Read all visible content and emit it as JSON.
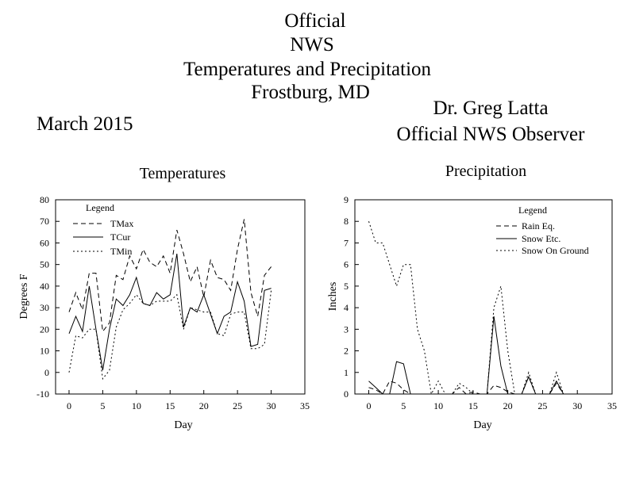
{
  "header": {
    "line1": "Official",
    "line2": "NWS",
    "line3": "Temperatures and Precipitation",
    "line4": "Frostburg, MD",
    "month": "March 2015",
    "observer_name": "Dr. Greg Latta",
    "observer_title": "Official NWS Observer"
  },
  "chart_data": [
    {
      "type": "line",
      "title": "Temperatures",
      "xlabel": "Day",
      "ylabel": "Degrees F",
      "xlim": [
        -2,
        35
      ],
      "ylim": [
        -10,
        80
      ],
      "xticks": [
        0,
        5,
        10,
        15,
        20,
        25,
        30,
        35
      ],
      "yticks": [
        -10,
        0,
        10,
        20,
        30,
        40,
        50,
        60,
        70,
        80
      ],
      "grid": false,
      "legend": {
        "title": "Legend",
        "placement": "top-left"
      },
      "x": [
        0,
        1,
        2,
        3,
        4,
        5,
        6,
        7,
        8,
        9,
        10,
        11,
        12,
        13,
        14,
        15,
        16,
        17,
        18,
        19,
        20,
        21,
        22,
        23,
        24,
        25,
        26,
        27,
        28,
        29,
        30
      ],
      "series": [
        {
          "name": "TMax",
          "style": "dashed",
          "values": [
            28,
            37,
            29,
            46,
            46,
            19,
            23,
            45,
            43,
            54,
            48,
            57,
            51,
            49,
            54,
            46,
            66,
            55,
            42,
            49,
            35,
            52,
            44,
            43,
            38,
            57,
            71,
            37,
            26,
            45,
            49
          ]
        },
        {
          "name": "TCur",
          "style": "solid",
          "values": [
            18,
            26,
            19,
            40,
            20,
            1,
            20,
            34,
            31,
            36,
            44,
            32,
            31,
            37,
            34,
            36,
            55,
            21,
            30,
            28,
            36,
            27,
            18,
            26,
            28,
            42,
            33,
            12,
            13,
            38,
            39
          ]
        },
        {
          "name": "TMin",
          "style": "dotted",
          "values": [
            0,
            17,
            16,
            20,
            20,
            -3,
            1,
            21,
            29,
            32,
            36,
            32,
            31,
            33,
            33,
            33,
            36,
            20,
            30,
            29,
            28,
            28,
            18,
            17,
            27,
            28,
            28,
            11,
            11,
            13,
            38
          ]
        }
      ]
    },
    {
      "type": "line",
      "title": "Precipitation",
      "xlabel": "Day",
      "ylabel": "Inches",
      "xlim": [
        -2,
        35
      ],
      "ylim": [
        0,
        9
      ],
      "xticks": [
        0,
        5,
        10,
        15,
        20,
        25,
        30,
        35
      ],
      "yticks": [
        0,
        1,
        2,
        3,
        4,
        5,
        6,
        7,
        8,
        9
      ],
      "grid": false,
      "legend": {
        "title": "Legend",
        "placement": "top-right"
      },
      "x": [
        0,
        1,
        2,
        3,
        4,
        5,
        6,
        7,
        8,
        9,
        10,
        11,
        12,
        13,
        14,
        15,
        16,
        17,
        18,
        19,
        20,
        21,
        22,
        23,
        24,
        25,
        26,
        27,
        28,
        29,
        30
      ],
      "series": [
        {
          "name": "Rain Eq.",
          "style": "dashed",
          "values": [
            0.3,
            0.2,
            0.0,
            0.6,
            0.5,
            0.2,
            0.0,
            0.0,
            0.0,
            0.0,
            0.0,
            0.0,
            0.0,
            0.3,
            0.0,
            0.1,
            0.0,
            0.0,
            0.4,
            0.3,
            0.1,
            0.0,
            0.0,
            0.8,
            0.0,
            0.0,
            0.0,
            0.5,
            0.0,
            0.0,
            0.0
          ]
        },
        {
          "name": "Snow Etc.",
          "style": "solid",
          "values": [
            0.6,
            0.3,
            0.0,
            0.0,
            1.5,
            1.4,
            0.0,
            0.0,
            0.0,
            0.0,
            0.0,
            0.0,
            0.0,
            0.0,
            0.0,
            0.0,
            0.0,
            0.0,
            3.6,
            1.3,
            0.0,
            0.0,
            0.0,
            0.8,
            0.0,
            0.0,
            0.0,
            0.6,
            0.0,
            0.0,
            0.0
          ]
        },
        {
          "name": "Snow On Ground",
          "style": "dotted",
          "values": [
            8,
            7,
            7,
            6,
            5,
            6,
            6,
            3,
            2,
            0,
            0.6,
            0,
            0,
            0.5,
            0.3,
            0,
            0,
            0,
            4,
            5,
            2,
            0,
            0,
            1,
            0,
            0,
            0,
            1,
            0,
            0,
            0
          ]
        }
      ]
    }
  ]
}
